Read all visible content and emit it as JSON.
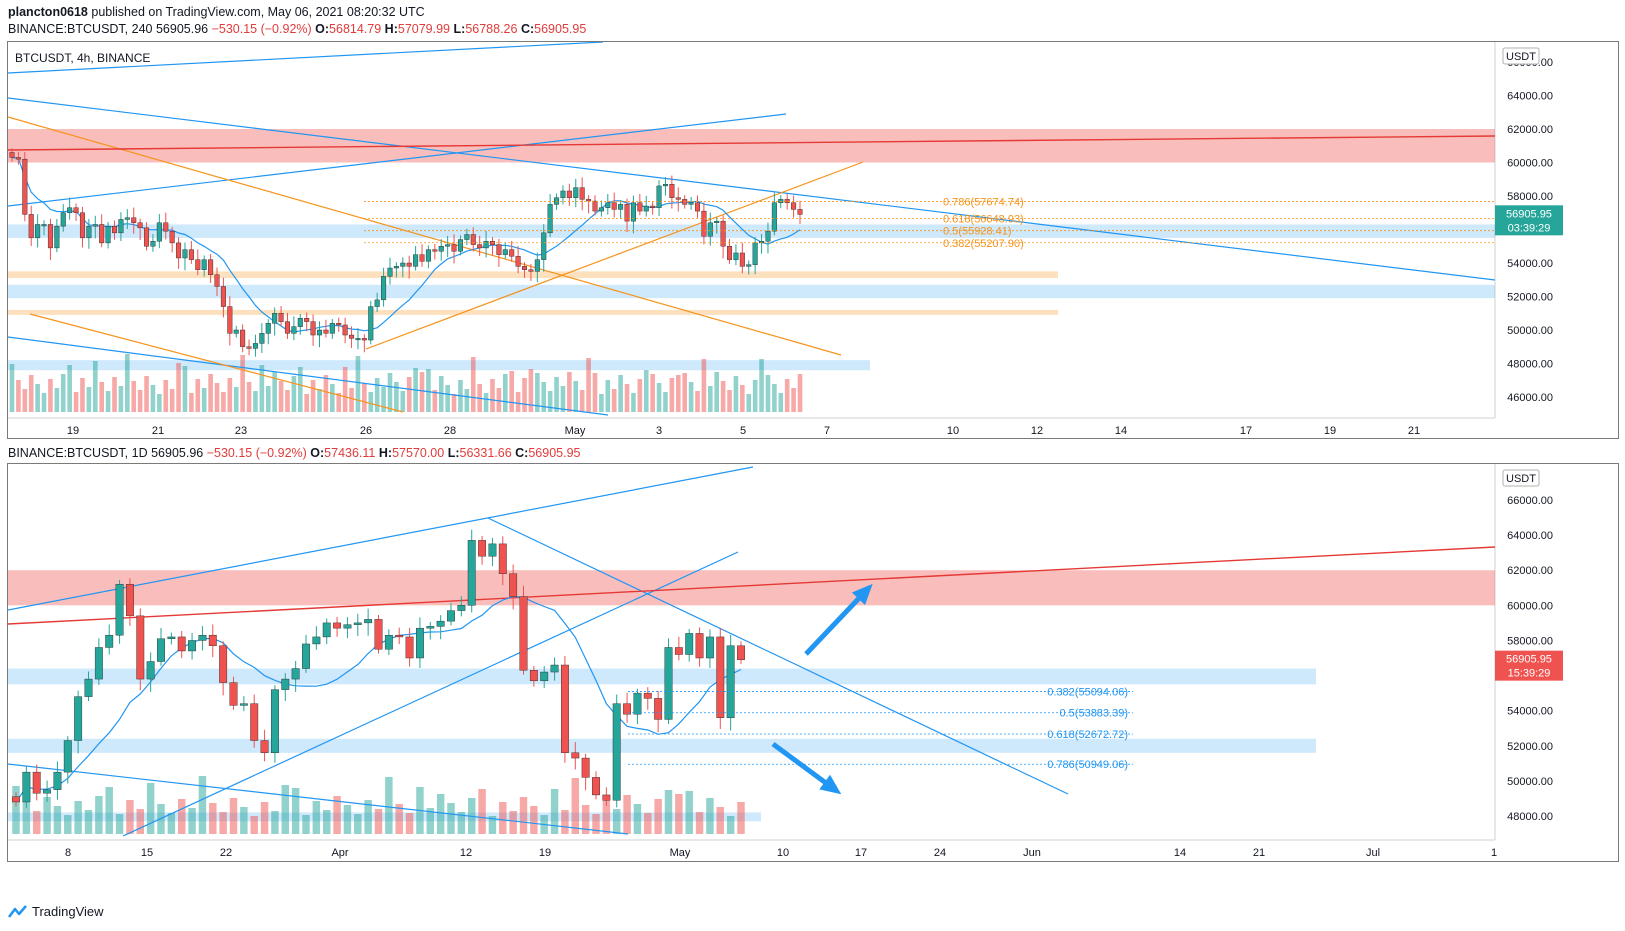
{
  "publish_line": {
    "author": "plancton0618",
    "rest": "published on TradingView.com, May 06, 2021 08:20:32 UTC"
  },
  "footer_brand": "TradingView",
  "colors": {
    "up": "#26a69a",
    "down": "#ef5350",
    "fib": "#f7931a",
    "trend": "#2196f3",
    "red_line": "#e53935"
  },
  "panels": [
    {
      "id": "p1",
      "ohlc_line": {
        "symbol": "BINANCE:BTCUSDT, 240",
        "price": "56905.96",
        "change": "−530.15 (−0.92%)",
        "O": "56814.79",
        "H": "57079.99",
        "L": "56788.26",
        "C": "56905.95"
      },
      "legend": "BTCUSDT, 4h, BINANCE",
      "currency": "USDT",
      "last_price": "56905.95",
      "countdown": "03:39:29",
      "y_ticks": [
        "66000.00",
        "64000.00",
        "62000.00",
        "60000.00",
        "58000.00",
        "56000.00",
        "54000.00",
        "52000.00",
        "50000.00",
        "48000.00",
        "46000.00"
      ],
      "x_ticks": [
        "19",
        "21",
        "23",
        "26",
        "28",
        "May",
        "3",
        "5",
        "7",
        "10",
        "12",
        "14",
        "17",
        "19",
        "21"
      ],
      "fib_labels": [
        "0.786(57674.74)",
        "0.618(56648.93)",
        "0.5(55928.41)",
        "0.382(55207.90)"
      ]
    },
    {
      "id": "p2",
      "ohlc_line": {
        "symbol": "BINANCE:BTCUSDT, 1D",
        "price": "56905.96",
        "change": "−530.15 (−0.92%)",
        "O": "57436.11",
        "H": "57570.00",
        "L": "56331.66",
        "C": "56905.95"
      },
      "currency": "USDT",
      "last_price": "56905.95",
      "countdown": "15:39:29",
      "y_ticks": [
        "66000.00",
        "64000.00",
        "62000.00",
        "60000.00",
        "58000.00",
        "56000.00",
        "54000.00",
        "52000.00",
        "50000.00",
        "48000.00"
      ],
      "x_ticks": [
        "8",
        "15",
        "22",
        "Apr",
        "12",
        "19",
        "May",
        "10",
        "17",
        "24",
        "Jun",
        "14",
        "21",
        "Jul",
        "1"
      ],
      "fib_labels": [
        "0.382(55094.06)",
        "0.5(53883.39)",
        "0.618(52672.72)",
        "0.786(50949.06)"
      ]
    }
  ],
  "chart_data": [
    {
      "type": "candlestick",
      "title": "BTCUSDT, 4h, BINANCE",
      "ylim": [
        45000,
        67000
      ],
      "y_scale": "linear",
      "zones": [
        {
          "kind": "resistance",
          "color": "#ef5350",
          "low": 60000,
          "high": 62000
        },
        {
          "kind": "support",
          "color": "#2196f3",
          "low": 55500,
          "high": 56300
        },
        {
          "kind": "support",
          "color": "#2196f3",
          "low": 51900,
          "high": 52700
        },
        {
          "kind": "demand",
          "color": "#f7931a",
          "low": 53100,
          "high": 53500
        },
        {
          "kind": "demand",
          "color": "#f7931a",
          "low": 50900,
          "high": 51200
        },
        {
          "kind": "volume-area",
          "color": "#2196f3",
          "low": 47600,
          "high": 48200
        }
      ],
      "fib_levels": [
        {
          "ratio": 0.786,
          "price": 57674.74
        },
        {
          "ratio": 0.618,
          "price": 56648.93
        },
        {
          "ratio": 0.5,
          "price": 55928.41
        },
        {
          "ratio": 0.382,
          "price": 55207.9
        }
      ],
      "closes": [
        60300,
        60200,
        56900,
        55500,
        56300,
        56300,
        54900,
        56200,
        57000,
        57300,
        57000,
        55500,
        56200,
        56300,
        55200,
        56200,
        55800,
        56600,
        56700,
        56400,
        56100,
        55000,
        55300,
        56400,
        55900,
        55200,
        54300,
        54800,
        54200,
        53600,
        54200,
        53300,
        52600,
        51400,
        49800,
        50000,
        49000,
        48900,
        49200,
        49800,
        50400,
        51000,
        50500,
        49800,
        50200,
        50700,
        50500,
        49700,
        50000,
        49800,
        50400,
        50300,
        49700,
        49500,
        49500,
        49400,
        51400,
        51800,
        53200,
        53700,
        53800,
        54000,
        53800,
        54500,
        54100,
        54800,
        54700,
        55000,
        55100,
        54700,
        55400,
        55700,
        55100,
        54900,
        55300,
        55100,
        54500,
        54800,
        54400,
        53800,
        53600,
        53500,
        54200,
        55800,
        57500,
        57900,
        58300,
        57900,
        58500,
        57800,
        57700,
        57100,
        57300,
        57600,
        57200,
        57500,
        56500,
        57600,
        57100,
        57400,
        57300,
        58600,
        58700,
        57900,
        57800,
        57500,
        57600,
        57100,
        55600,
        56400,
        56500,
        55000,
        54200,
        54600,
        53800,
        53900,
        55200,
        55300,
        55900,
        57600,
        57800,
        57600,
        57200,
        56900
      ]
    },
    {
      "type": "candlestick",
      "title": "BINANCE:BTCUSDT, 1D",
      "ylim": [
        47000,
        67000
      ],
      "y_scale": "linear",
      "zones": [
        {
          "kind": "resistance",
          "color": "#ef5350",
          "low": 60000,
          "high": 62000
        },
        {
          "kind": "support",
          "color": "#2196f3",
          "low": 55500,
          "high": 56400
        },
        {
          "kind": "support",
          "color": "#2196f3",
          "low": 51600,
          "high": 52400
        },
        {
          "kind": "volume-area",
          "color": "#2196f3",
          "low": 47700,
          "high": 48200
        }
      ],
      "fib_levels": [
        {
          "ratio": 0.382,
          "price": 55094.06
        },
        {
          "ratio": 0.5,
          "price": 53883.39
        },
        {
          "ratio": 0.618,
          "price": 52672.72
        },
        {
          "ratio": 0.786,
          "price": 50949.06
        }
      ],
      "closes": [
        48800,
        50500,
        49300,
        49500,
        50500,
        52300,
        54800,
        55800,
        57600,
        58300,
        61200,
        59400,
        55800,
        56800,
        58100,
        58200,
        57400,
        58000,
        58300,
        57700,
        55600,
        54300,
        54400,
        52300,
        51600,
        55200,
        55800,
        56400,
        57800,
        58200,
        59000,
        58700,
        58900,
        59000,
        59200,
        57500,
        58300,
        58200,
        57000,
        58700,
        58800,
        59100,
        59700,
        60000,
        63700,
        62800,
        63500,
        61800,
        60500,
        56300,
        55700,
        56200,
        56600,
        51600,
        51300,
        50200,
        49200,
        48900,
        54400,
        53800,
        55000,
        54700,
        53500,
        57600,
        57200,
        58400,
        57000,
        58200,
        53600,
        57700,
        56900
      ]
    }
  ]
}
